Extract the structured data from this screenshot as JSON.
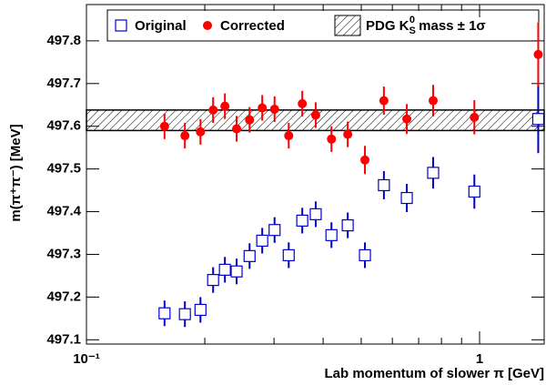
{
  "chart_data": {
    "type": "scatter",
    "y_label": "m(π⁺π⁻) [MeV]",
    "x_label": "Lab momentum of slower π [GeV]",
    "log_x": true,
    "xlim": [
      0.1,
      1.46
    ],
    "ylim": [
      497.09,
      497.885
    ],
    "xticks": [
      {
        "value": 0.1,
        "label": "10⁻¹"
      },
      1
    ],
    "xminor_ticks": [
      0.2,
      0.3,
      0.4,
      0.5,
      0.6,
      0.7,
      0.8,
      0.9
    ],
    "yticks": [
      497.1,
      497.2,
      497.3,
      497.4,
      497.5,
      497.6,
      497.7,
      497.8
    ],
    "x": [
      0.158,
      0.178,
      0.195,
      0.21,
      0.225,
      0.241,
      0.26,
      0.28,
      0.301,
      0.327,
      0.354,
      0.383,
      0.42,
      0.462,
      0.511,
      0.571,
      0.653,
      0.762,
      0.97,
      1.41
    ],
    "series": [
      {
        "name": "Original",
        "color": "#0000cc",
        "marker": "square",
        "values": [
          497.162,
          497.16,
          497.17,
          497.24,
          497.264,
          497.26,
          497.296,
          497.332,
          497.357,
          497.298,
          497.379,
          497.394,
          497.345,
          497.368,
          497.298,
          497.462,
          497.432,
          497.491,
          497.447,
          497.617
        ],
        "errors": [
          0.03,
          0.03,
          0.03,
          0.03,
          0.03,
          0.03,
          0.03,
          0.03,
          0.03,
          0.03,
          0.03,
          0.03,
          0.03,
          0.03,
          0.03,
          0.033,
          0.033,
          0.037,
          0.04,
          0.08
        ]
      },
      {
        "name": "Corrected",
        "color": "#ff0000",
        "marker": "circle",
        "values": [
          497.6,
          497.578,
          497.587,
          497.638,
          497.647,
          497.594,
          497.615,
          497.643,
          497.64,
          497.578,
          497.653,
          497.626,
          497.57,
          497.581,
          497.521,
          497.66,
          497.617,
          497.66,
          497.621,
          497.768
        ],
        "errors": [
          0.03,
          0.03,
          0.03,
          0.03,
          0.03,
          0.03,
          0.03,
          0.03,
          0.03,
          0.03,
          0.03,
          0.03,
          0.03,
          0.03,
          0.033,
          0.033,
          0.035,
          0.037,
          0.04,
          0.075
        ]
      }
    ],
    "band": {
      "name_parts": [
        "PDG K",
        "S",
        "0",
        " mass ± 1σ"
      ],
      "center": 497.614,
      "error": 0.024
    }
  }
}
